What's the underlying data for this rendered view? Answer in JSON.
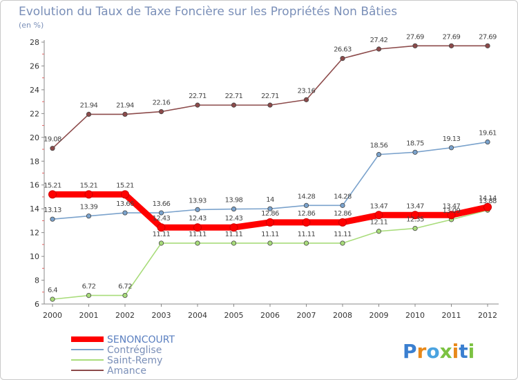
{
  "chart_data": {
    "type": "line",
    "title": "Evolution du Taux de Taxe Foncière sur les Propriétés Non Bâties",
    "unit_label": "(en %)",
    "xlabel": "",
    "ylabel": "(en %)",
    "categories": [
      "2000",
      "2001",
      "2002",
      "2003",
      "2004",
      "2005",
      "2006",
      "2007",
      "2008",
      "2009",
      "2010",
      "2011",
      "2012"
    ],
    "ylim": [
      6,
      28
    ],
    "yticks": [
      "6",
      "8",
      "10",
      "12",
      "14",
      "16",
      "18",
      "20",
      "22",
      "24",
      "26",
      "28"
    ],
    "grid": false,
    "legend_position": "bottom-left",
    "series": [
      {
        "name": "SENONCOURT",
        "color": "#ff0000",
        "values": [
          15.21,
          15.21,
          15.21,
          12.43,
          12.43,
          12.43,
          12.86,
          12.86,
          12.86,
          13.47,
          13.47,
          13.47,
          14.14
        ],
        "labels": [
          "15.21",
          "15.21",
          "15.21",
          "12.43",
          "12.43",
          "12.43",
          "12.86",
          "12.86",
          "12.86",
          "13.47",
          "13.47",
          "13.47",
          "14.14"
        ]
      },
      {
        "name": "Contréglise",
        "color": "#7aa2cc",
        "values": [
          13.13,
          13.39,
          13.66,
          13.66,
          13.93,
          13.98,
          14,
          14.28,
          14.28,
          18.56,
          18.75,
          19.13,
          19.61
        ],
        "labels": [
          "13.13",
          "13.39",
          "13.66",
          "13.66",
          "13.93",
          "13.98",
          "14",
          "14.28",
          "14.28",
          "18.56",
          "18.75",
          "19.13",
          "19.61"
        ]
      },
      {
        "name": "Saint-Remy",
        "color": "#a8dc7a",
        "values": [
          6.4,
          6.72,
          6.72,
          11.11,
          11.11,
          11.11,
          11.11,
          11.11,
          11.11,
          12.11,
          12.35,
          13.09,
          13.88
        ],
        "labels": [
          "6.4",
          "6.72",
          "6.72",
          "11.11",
          "11.11",
          "11.11",
          "11.11",
          "11.11",
          "11.11",
          "12.11",
          "12.35",
          "13.09",
          "13.88"
        ]
      },
      {
        "name": "Amance",
        "color": "#8c4a4a",
        "values": [
          19.08,
          21.94,
          21.94,
          22.16,
          22.71,
          22.71,
          22.71,
          23.16,
          26.63,
          27.42,
          27.69,
          27.69,
          27.69
        ],
        "labels": [
          "19.08",
          "21.94",
          "21.94",
          "22.16",
          "22.71",
          "22.71",
          "22.71",
          "23.16",
          "26.63",
          "27.42",
          "27.69",
          "27.69",
          "27.69"
        ]
      }
    ]
  },
  "logo": {
    "letters": [
      "P",
      "r",
      "o",
      "x",
      "i",
      "t",
      "i"
    ],
    "colors": [
      "#3a7fd0",
      "#e8891a",
      "#4aa3e0",
      "#7cc242",
      "#e8891a",
      "#3a7fd0",
      "#7cc242"
    ]
  }
}
